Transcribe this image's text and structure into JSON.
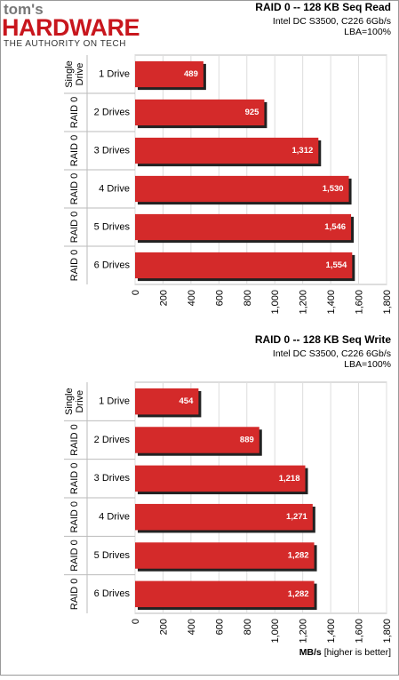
{
  "logo": {
    "line1": "tom's",
    "line2": "HARDWARE",
    "line3": "THE AUTHORITY ON TECH"
  },
  "chart_data": [
    {
      "type": "bar",
      "orientation": "horizontal",
      "title": "RAID 0 -- 128 KB Seq Read",
      "subtitle": [
        "Intel DC S3500, C226 6Gb/s",
        "LBA=100%"
      ],
      "groups": [
        [
          "Single",
          "Drive"
        ],
        [
          "RAID 0"
        ],
        [
          "RAID 0"
        ],
        [
          "RAID 0"
        ],
        [
          "RAID 0"
        ],
        [
          "RAID 0"
        ]
      ],
      "categories": [
        "1 Drive",
        "2 Drives",
        "3 Drives",
        "4 Drive",
        "5 Drives",
        "6 Drives"
      ],
      "values": [
        489,
        925,
        1312,
        1530,
        1546,
        1554
      ],
      "value_labels": [
        "489",
        "925",
        "1,312",
        "1,530",
        "1,546",
        "1,554"
      ],
      "color": "#d42a2a",
      "grid": true,
      "xlim": [
        0,
        1800
      ],
      "xticks": [
        0,
        200,
        400,
        600,
        800,
        {
          "value": 1000,
          "label": "1,000"
        },
        {
          "value": 1200,
          "label": "1,200"
        },
        {
          "value": 1400,
          "label": "1,400"
        },
        {
          "value": 1600,
          "label": "1,600"
        },
        {
          "value": 1800,
          "label": "1,800"
        }
      ]
    },
    {
      "type": "bar",
      "orientation": "horizontal",
      "title": "RAID 0 -- 128 KB Seq Write",
      "subtitle": [
        "Intel DC S3500, C226 6Gb/s",
        "LBA=100%"
      ],
      "groups": [
        [
          "Single",
          "Drive"
        ],
        [
          "RAID 0"
        ],
        [
          "RAID 0"
        ],
        [
          "RAID 0"
        ],
        [
          "RAID 0"
        ],
        [
          "RAID 0"
        ]
      ],
      "categories": [
        "1 Drive",
        "2 Drives",
        "3 Drives",
        "4 Drive",
        "5 Drives",
        "6 Drives"
      ],
      "values": [
        454,
        889,
        1218,
        1271,
        1282,
        1282
      ],
      "value_labels": [
        "454",
        "889",
        "1,218",
        "1,271",
        "1,282",
        "1,282"
      ],
      "color": "#d42a2a",
      "grid": true,
      "xlim": [
        0,
        1800
      ],
      "xticks": [
        0,
        200,
        400,
        600,
        800,
        {
          "value": 1000,
          "label": "1,000"
        },
        {
          "value": 1200,
          "label": "1,200"
        },
        {
          "value": 1400,
          "label": "1,400"
        },
        {
          "value": 1600,
          "label": "1,600"
        },
        {
          "value": 1800,
          "label": "1,800"
        }
      ],
      "xlabel": "MB/s",
      "xlabel_note": "[higher is better]"
    }
  ]
}
